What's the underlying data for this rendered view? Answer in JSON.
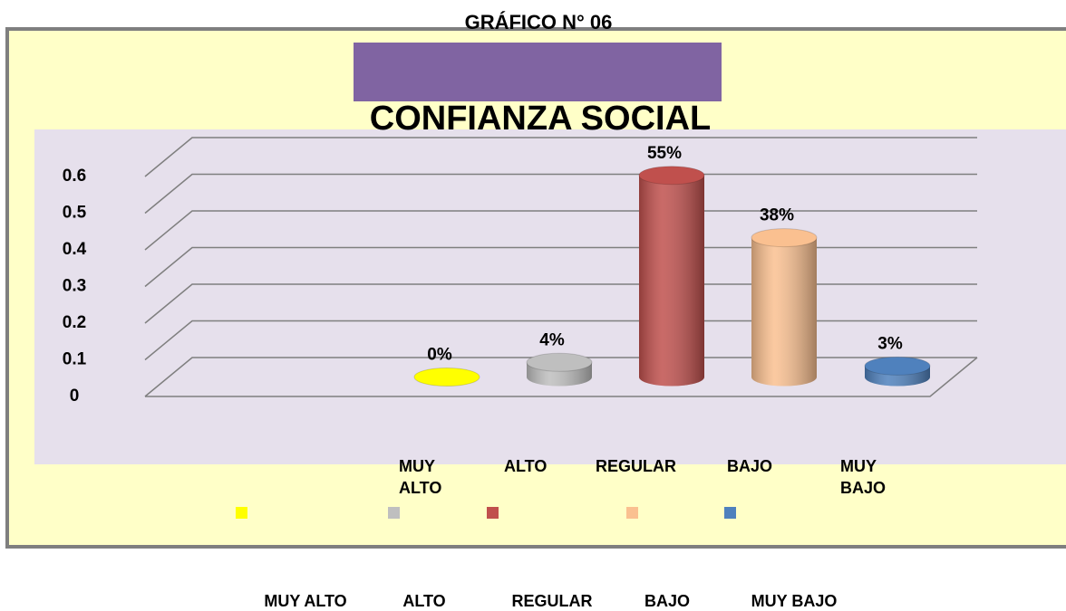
{
  "chart_data": {
    "type": "bar3d",
    "super_title": "GRÁFICO N° 06",
    "title": "CONFIANZA SOCIAL",
    "categories": [
      "MUY ALTO",
      "ALTO",
      "REGULAR",
      "BAJO",
      "MUY BAJO"
    ],
    "values": [
      0,
      0.04,
      0.55,
      0.38,
      0.03
    ],
    "value_labels": [
      "0%",
      "4%",
      "55%",
      "38%",
      "3%"
    ],
    "colors": [
      "#ffff00",
      "#bfbfbf",
      "#c0504d",
      "#fac090",
      "#4f81bd"
    ],
    "ylim": [
      0,
      0.6
    ],
    "yticks": [
      0,
      0.1,
      0.2,
      0.3,
      0.4,
      0.5,
      0.6
    ],
    "grid": true
  }
}
